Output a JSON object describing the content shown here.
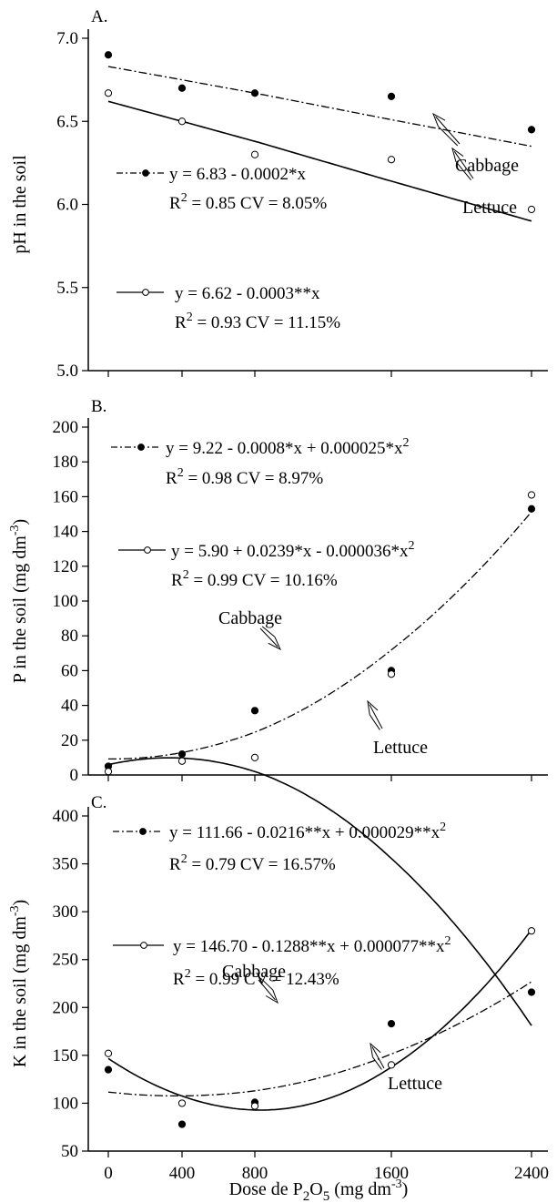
{
  "figure": {
    "x_axis_label_prefix": "Dose de P",
    "x_axis_sub_1": "2",
    "x_axis_mid": "O",
    "x_axis_sub_2": "5",
    "x_axis_unit": " (mg dm",
    "x_axis_unit_exp": "-3",
    "x_axis_close": ")"
  },
  "chart_data": [
    {
      "panel_label": "A.",
      "type": "scatter",
      "ylabel": "pH  in the soil",
      "ylabel_unit": "",
      "ylabel_exp": "",
      "ylabel_close": "",
      "ylim": [
        5.0,
        7.0
      ],
      "yticks": [
        "5.0",
        "5.5",
        "6.0",
        "6.5",
        "7.0"
      ],
      "ytick_values": [
        5.0,
        5.5,
        6.0,
        6.5,
        7.0
      ],
      "categories": [
        "0",
        "400",
        "800",
        "1600",
        "2400"
      ],
      "series": [
        {
          "name": "Cabbage",
          "marker": "filled",
          "line": "dashdot",
          "values": [
            6.9,
            6.7,
            6.67,
            6.65,
            6.45
          ],
          "fit": [
            6.83,
            -0.0002,
            0
          ],
          "eq_text": "y = 6.83 - 0.0002*x",
          "r2_label": "R",
          "r2_sup": "2",
          "r2_value": " = 0.85",
          "cv_text": "CV = 8.05%"
        },
        {
          "name": "Lettuce",
          "marker": "open",
          "line": "solid",
          "values": [
            6.67,
            6.5,
            6.3,
            6.27,
            5.97
          ],
          "fit": [
            6.62,
            -0.0003,
            0
          ],
          "eq_text": "y = 6.62 - 0.0003**x",
          "r2_label": "R",
          "r2_sup": "2",
          "r2_value": " = 0.93",
          "cv_text": "CV = 11.15%"
        }
      ],
      "annotations": [
        "Cabbage",
        "Lettuce"
      ]
    },
    {
      "panel_label": "B.",
      "type": "scatter",
      "ylabel": "P in the soil (mg dm",
      "ylabel_unit": "",
      "ylabel_exp": "-3",
      "ylabel_close": ")",
      "ylim": [
        0,
        200
      ],
      "yticks": [
        "0",
        "20",
        "40",
        "60",
        "80",
        "100",
        "120",
        "140",
        "160",
        "180",
        "200"
      ],
      "ytick_values": [
        0,
        20,
        40,
        60,
        80,
        100,
        120,
        140,
        160,
        180,
        200
      ],
      "categories": [
        "0",
        "400",
        "800",
        "1600",
        "2400"
      ],
      "series": [
        {
          "name": "Cabbage",
          "marker": "filled",
          "line": "dashdot",
          "values": [
            5,
            12,
            37,
            60,
            153
          ],
          "fit": [
            9.22,
            -0.0008,
            2.5e-05
          ],
          "eq_text": "y = 9.22 - 0.0008*x + 0.000025*x",
          "eq_sup": "2",
          "r2_label": "R",
          "r2_sup": "2",
          "r2_value": " = 0.98",
          "cv_text": "CV = 8.97%"
        },
        {
          "name": "Lettuce",
          "marker": "open",
          "line": "solid",
          "values": [
            2,
            8,
            10,
            58,
            161
          ],
          "fit": [
            5.9,
            0.0239,
            -3.6e-05
          ],
          "eq_text": "y = 5.90 + 0.0239*x - 0.000036*x",
          "eq_sup": "2",
          "r2_label": "R",
          "r2_sup": "2",
          "r2_value": " = 0.99",
          "cv_text": "CV = 10.16%"
        }
      ],
      "annotations": [
        "Cabbage",
        "Lettuce"
      ]
    },
    {
      "panel_label": "C.",
      "type": "scatter",
      "ylabel": "K in the soil (mg dm",
      "ylabel_unit": "",
      "ylabel_exp": "-3",
      "ylabel_close": ")",
      "ylim": [
        50,
        400
      ],
      "yticks": [
        "50",
        "100",
        "150",
        "200",
        "250",
        "300",
        "350",
        "400"
      ],
      "ytick_values": [
        50,
        100,
        150,
        200,
        250,
        300,
        350,
        400
      ],
      "categories": [
        "0",
        "400",
        "800",
        "1600",
        "2400"
      ],
      "series": [
        {
          "name": "Cabbage",
          "marker": "filled",
          "line": "dashdot",
          "values": [
            135,
            78,
            101,
            183,
            216
          ],
          "fit": [
            111.66,
            -0.0216,
            2.9e-05
          ],
          "eq_text": "y = 111.66 - 0.0216**x + 0.000029**x",
          "eq_sup": "2",
          "r2_label": "R",
          "r2_sup": "2",
          "r2_value": " = 0.79",
          "cv_text": "CV = 16.57%"
        },
        {
          "name": "Lettuce",
          "marker": "open",
          "line": "solid",
          "values": [
            152,
            100,
            97,
            140,
            280
          ],
          "fit": [
            146.7,
            -0.1288,
            7.7e-05
          ],
          "eq_text": "y = 146.70 - 0.1288**x + 0.000077**x",
          "eq_sup": "2",
          "r2_label": "R",
          "r2_sup": "2",
          "r2_value": " = 0.99",
          "cv_text": "CV = 12.43%"
        }
      ],
      "annotations": [
        "Cabbage",
        "Lettuce"
      ]
    }
  ]
}
